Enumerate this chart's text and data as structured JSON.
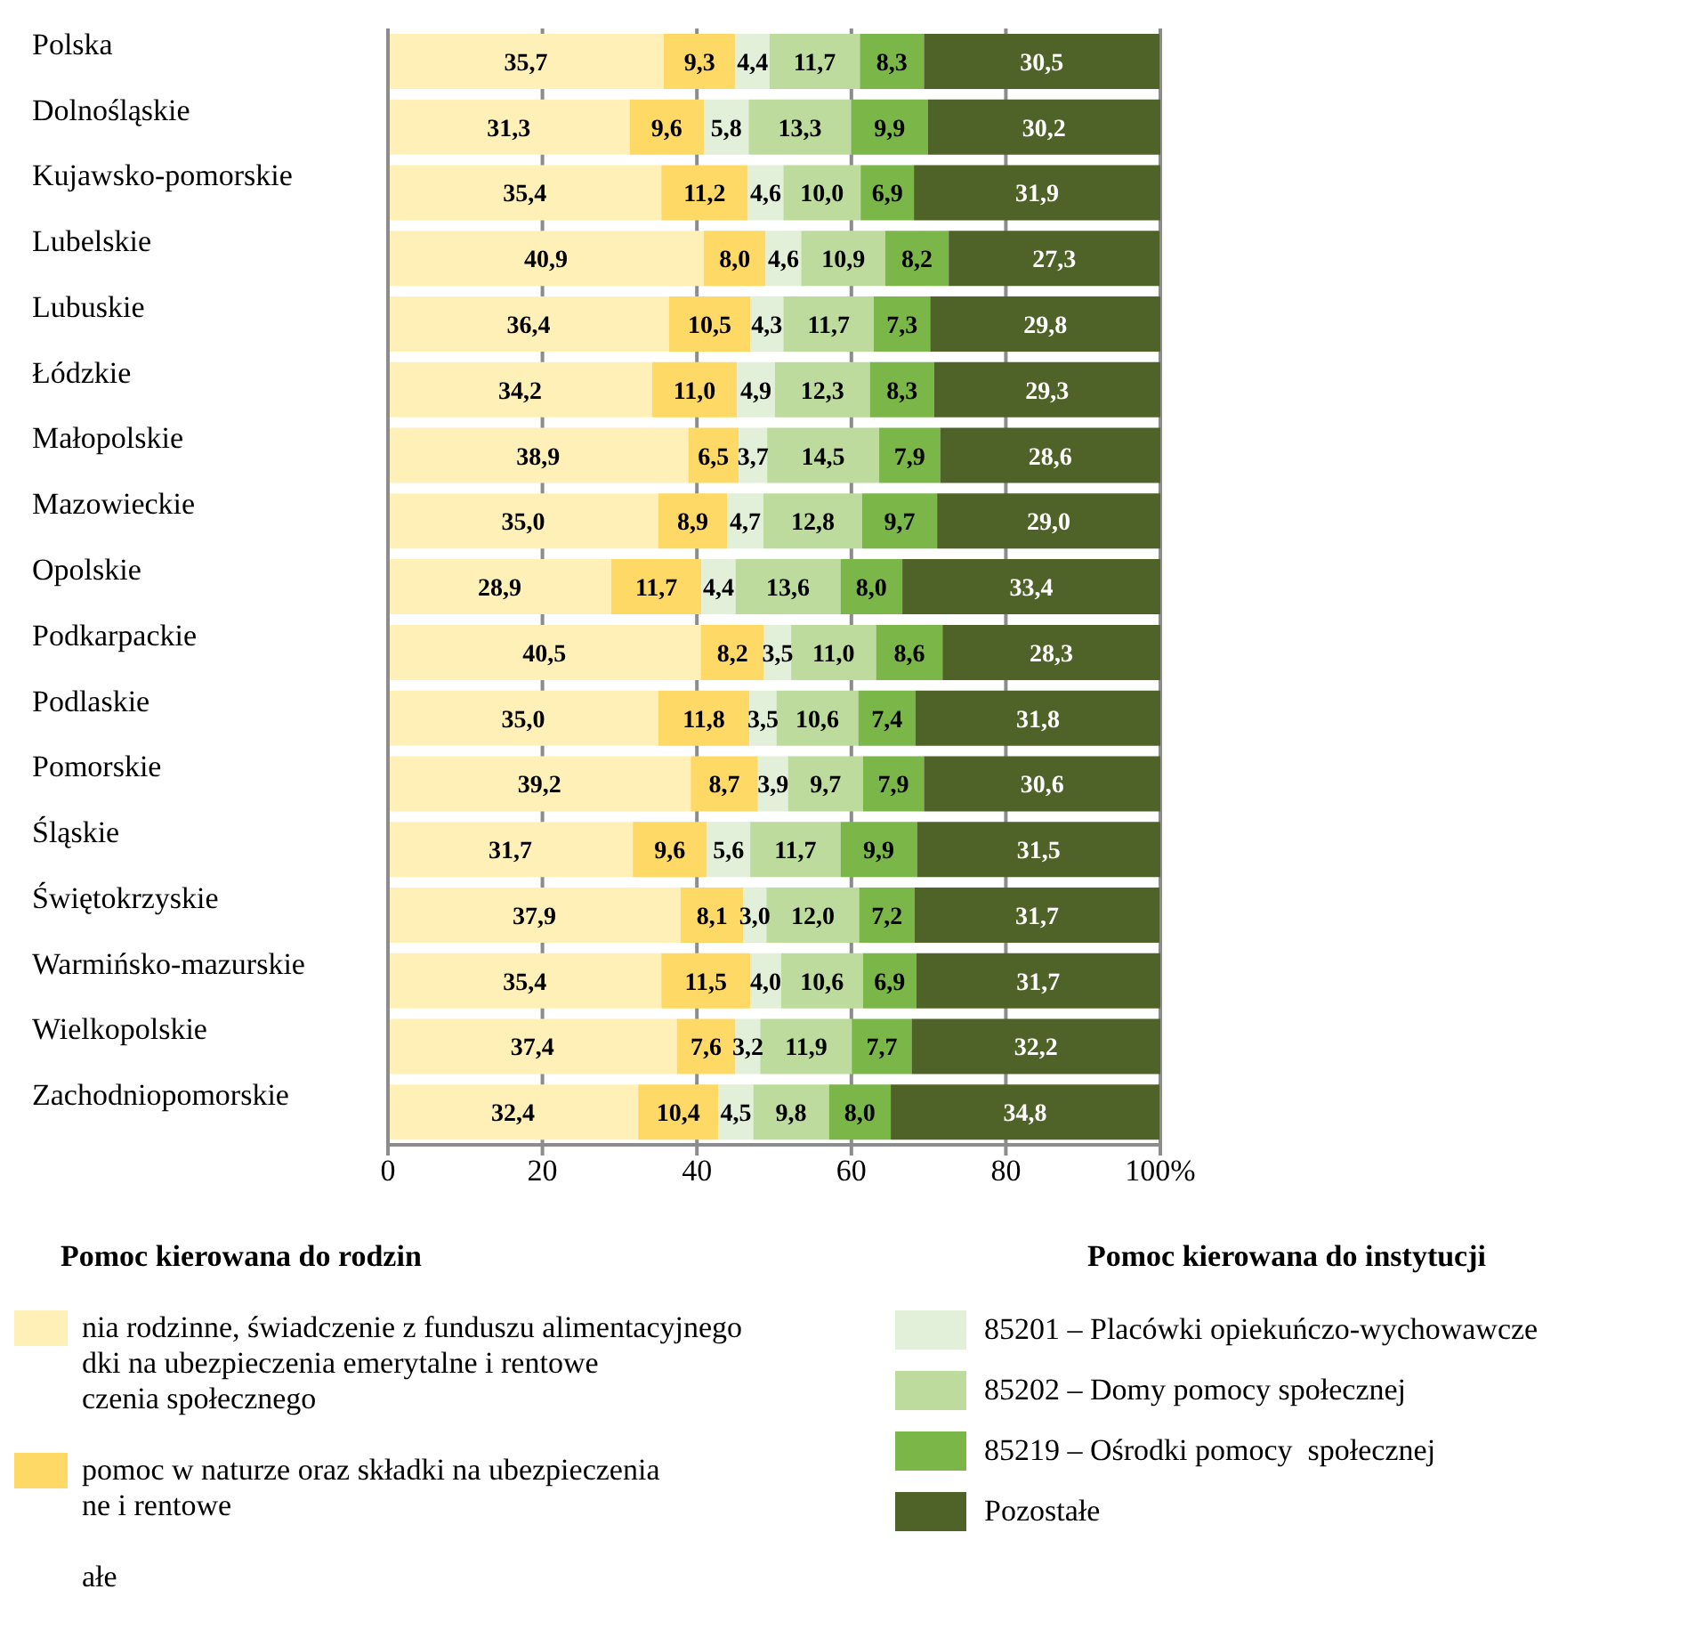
{
  "chart_data": {
    "type": "bar",
    "orientation": "horizontal",
    "stacked": true,
    "grid": "x",
    "legend": "bottom",
    "categories": [
      "Polska",
      "Dolnośląskie",
      "Kujawsko-pomorskie",
      "Lubelskie",
      "Lubuskie",
      "Łódzkie",
      "Małopolskie",
      "Mazowieckie",
      "Opolskie",
      "Podkarpackie",
      "Podlaskie",
      "Pomorskie",
      "Śląskie",
      "Świętokrzyskie",
      "Warmińsko-mazurskie",
      "Wielkopolskie",
      "Zachodniopomorskie"
    ],
    "xlim": [
      0,
      100
    ],
    "xticks": [
      0,
      20,
      40,
      60,
      80,
      {
        "value": 100,
        "label": "100%"
      }
    ],
    "annotations": [
      "Pomoc kierowana do rodzin",
      "Pomoc kierowana do instytucji",
      "ałe"
    ],
    "series": [
      {
        "name": "nia rodzinne, świadczenie z funduszu alimentacyjnego\ndki na ubezpieczenia emerytalne i rentowe\nczenia społecznego",
        "color": "#fff0b8",
        "values": [
          35.7,
          31.3,
          35.4,
          40.9,
          36.4,
          34.2,
          38.9,
          35.0,
          28.9,
          40.5,
          35.0,
          39.2,
          31.7,
          37.9,
          35.4,
          37.4,
          32.4
        ],
        "value_labels": [
          "35,7",
          "31,3",
          "35,4",
          "40,9",
          "36,4",
          "34,2",
          "38,9",
          "35,0",
          "28,9",
          "40,5",
          "35,0",
          "39,2",
          "31,7",
          "37,9",
          "35,4",
          "37,4",
          "32,4"
        ]
      },
      {
        "name": "pomoc w naturze oraz składki na ubezpieczenia\nne i rentowe",
        "color": "#ffd966",
        "values": [
          9.3,
          9.6,
          11.2,
          8.0,
          10.5,
          11.0,
          6.5,
          8.9,
          11.7,
          8.2,
          11.8,
          8.7,
          9.6,
          8.1,
          11.5,
          7.6,
          10.4
        ],
        "value_labels": [
          "9,3",
          "9,6",
          "11,2",
          "8,0",
          "10,5",
          "11,0",
          "6,5",
          "8,9",
          "11,7",
          "8,2",
          "11,8",
          "8,7",
          "9,6",
          "8,1",
          "11,5",
          "7,6",
          "10,4"
        ]
      },
      {
        "name": "85201 – Placówki opiekuńczo-wychowawcze",
        "color": "#e2efd9",
        "values": [
          4.4,
          5.8,
          4.6,
          4.6,
          4.3,
          4.9,
          3.7,
          4.7,
          4.4,
          3.5,
          3.5,
          3.9,
          5.6,
          3.0,
          4.0,
          3.2,
          4.5
        ],
        "value_labels": [
          "4,4",
          "5,8",
          "4,6",
          "4,6",
          "4,3",
          "4,9",
          "3,7",
          "4,7",
          "4,4",
          "3,5",
          "3,5",
          "3,9",
          "5,6",
          "3,0",
          "4,0",
          "3,2",
          "4,5"
        ]
      },
      {
        "name": "85202 – Domy pomocy społecznej",
        "color": "#bcdb9c",
        "values": [
          11.7,
          13.3,
          10.0,
          10.9,
          11.7,
          12.3,
          14.5,
          12.8,
          13.6,
          11.0,
          10.6,
          9.7,
          11.7,
          12.0,
          10.6,
          11.9,
          9.8
        ],
        "value_labels": [
          "11,7",
          "13,3",
          "10,0",
          "10,9",
          "11,7",
          "12,3",
          "14,5",
          "12,8",
          "13,6",
          "11,0",
          "10,6",
          "9,7",
          "11,7",
          "12,0",
          "10,6",
          "11,9",
          "9,8"
        ]
      },
      {
        "name": "85219 – Ośrodki pomocy  społecznej",
        "color": "#7ab648",
        "values": [
          8.3,
          9.9,
          6.9,
          8.2,
          7.3,
          8.3,
          7.9,
          9.7,
          8.0,
          8.6,
          7.4,
          7.9,
          9.9,
          7.2,
          6.9,
          7.7,
          8.0
        ],
        "value_labels": [
          "8,3",
          "9,9",
          "6,9",
          "8,2",
          "7,3",
          "8,3",
          "7,9",
          "9,7",
          "8,0",
          "8,6",
          "7,4",
          "7,9",
          "9,9",
          "7,2",
          "6,9",
          "7,7",
          "8,0"
        ]
      },
      {
        "name": "Pozostałe",
        "color": "#4f6228",
        "values": [
          30.5,
          30.2,
          31.9,
          27.3,
          29.8,
          29.3,
          28.6,
          29.0,
          33.4,
          28.3,
          31.8,
          30.6,
          31.5,
          31.7,
          31.7,
          32.2,
          34.8
        ],
        "value_labels": [
          "30,5",
          "30,2",
          "31,9",
          "27,3",
          "29,8",
          "29,3",
          "28,6",
          "29,0",
          "33,4",
          "28,3",
          "31,8",
          "30,6",
          "31,5",
          "31,7",
          "31,7",
          "32,2",
          "34,8"
        ]
      }
    ]
  }
}
